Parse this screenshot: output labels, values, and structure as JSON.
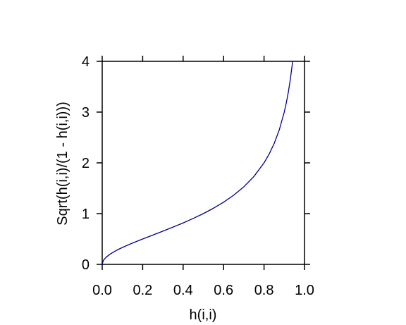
{
  "chart_data": {
    "type": "line",
    "title": "",
    "xlabel": "h(i,i)",
    "ylabel": "Sqrt(h(i,i)/(1 - h(i,i)))",
    "xlim": [
      0.0,
      1.0
    ],
    "ylim": [
      0,
      4
    ],
    "x_ticks": [
      "0.0",
      "0.2",
      "0.4",
      "0.6",
      "0.8",
      "1.0"
    ],
    "y_ticks": [
      "0",
      "1",
      "2",
      "3",
      "4"
    ],
    "grid": false,
    "legend": "none",
    "colors": {
      "line": "#00008b",
      "axes": "#000000",
      "background": "#ffffff"
    },
    "series": [
      {
        "x": [
          0.0,
          0.005,
          0.01,
          0.02,
          0.04,
          0.06,
          0.08,
          0.1,
          0.15,
          0.2,
          0.25,
          0.3,
          0.35,
          0.4,
          0.45,
          0.5,
          0.55,
          0.6,
          0.65,
          0.7,
          0.75,
          0.8,
          0.825,
          0.85,
          0.875,
          0.9,
          0.91,
          0.92,
          0.93,
          0.94,
          0.941
        ],
        "y": [
          0.0,
          0.071,
          0.1,
          0.143,
          0.204,
          0.253,
          0.295,
          0.333,
          0.42,
          0.5,
          0.577,
          0.655,
          0.734,
          0.816,
          0.905,
          1.0,
          1.106,
          1.225,
          1.363,
          1.528,
          1.732,
          2.0,
          2.171,
          2.38,
          2.646,
          3.0,
          3.18,
          3.391,
          3.645,
          3.958,
          3.994
        ]
      }
    ]
  }
}
